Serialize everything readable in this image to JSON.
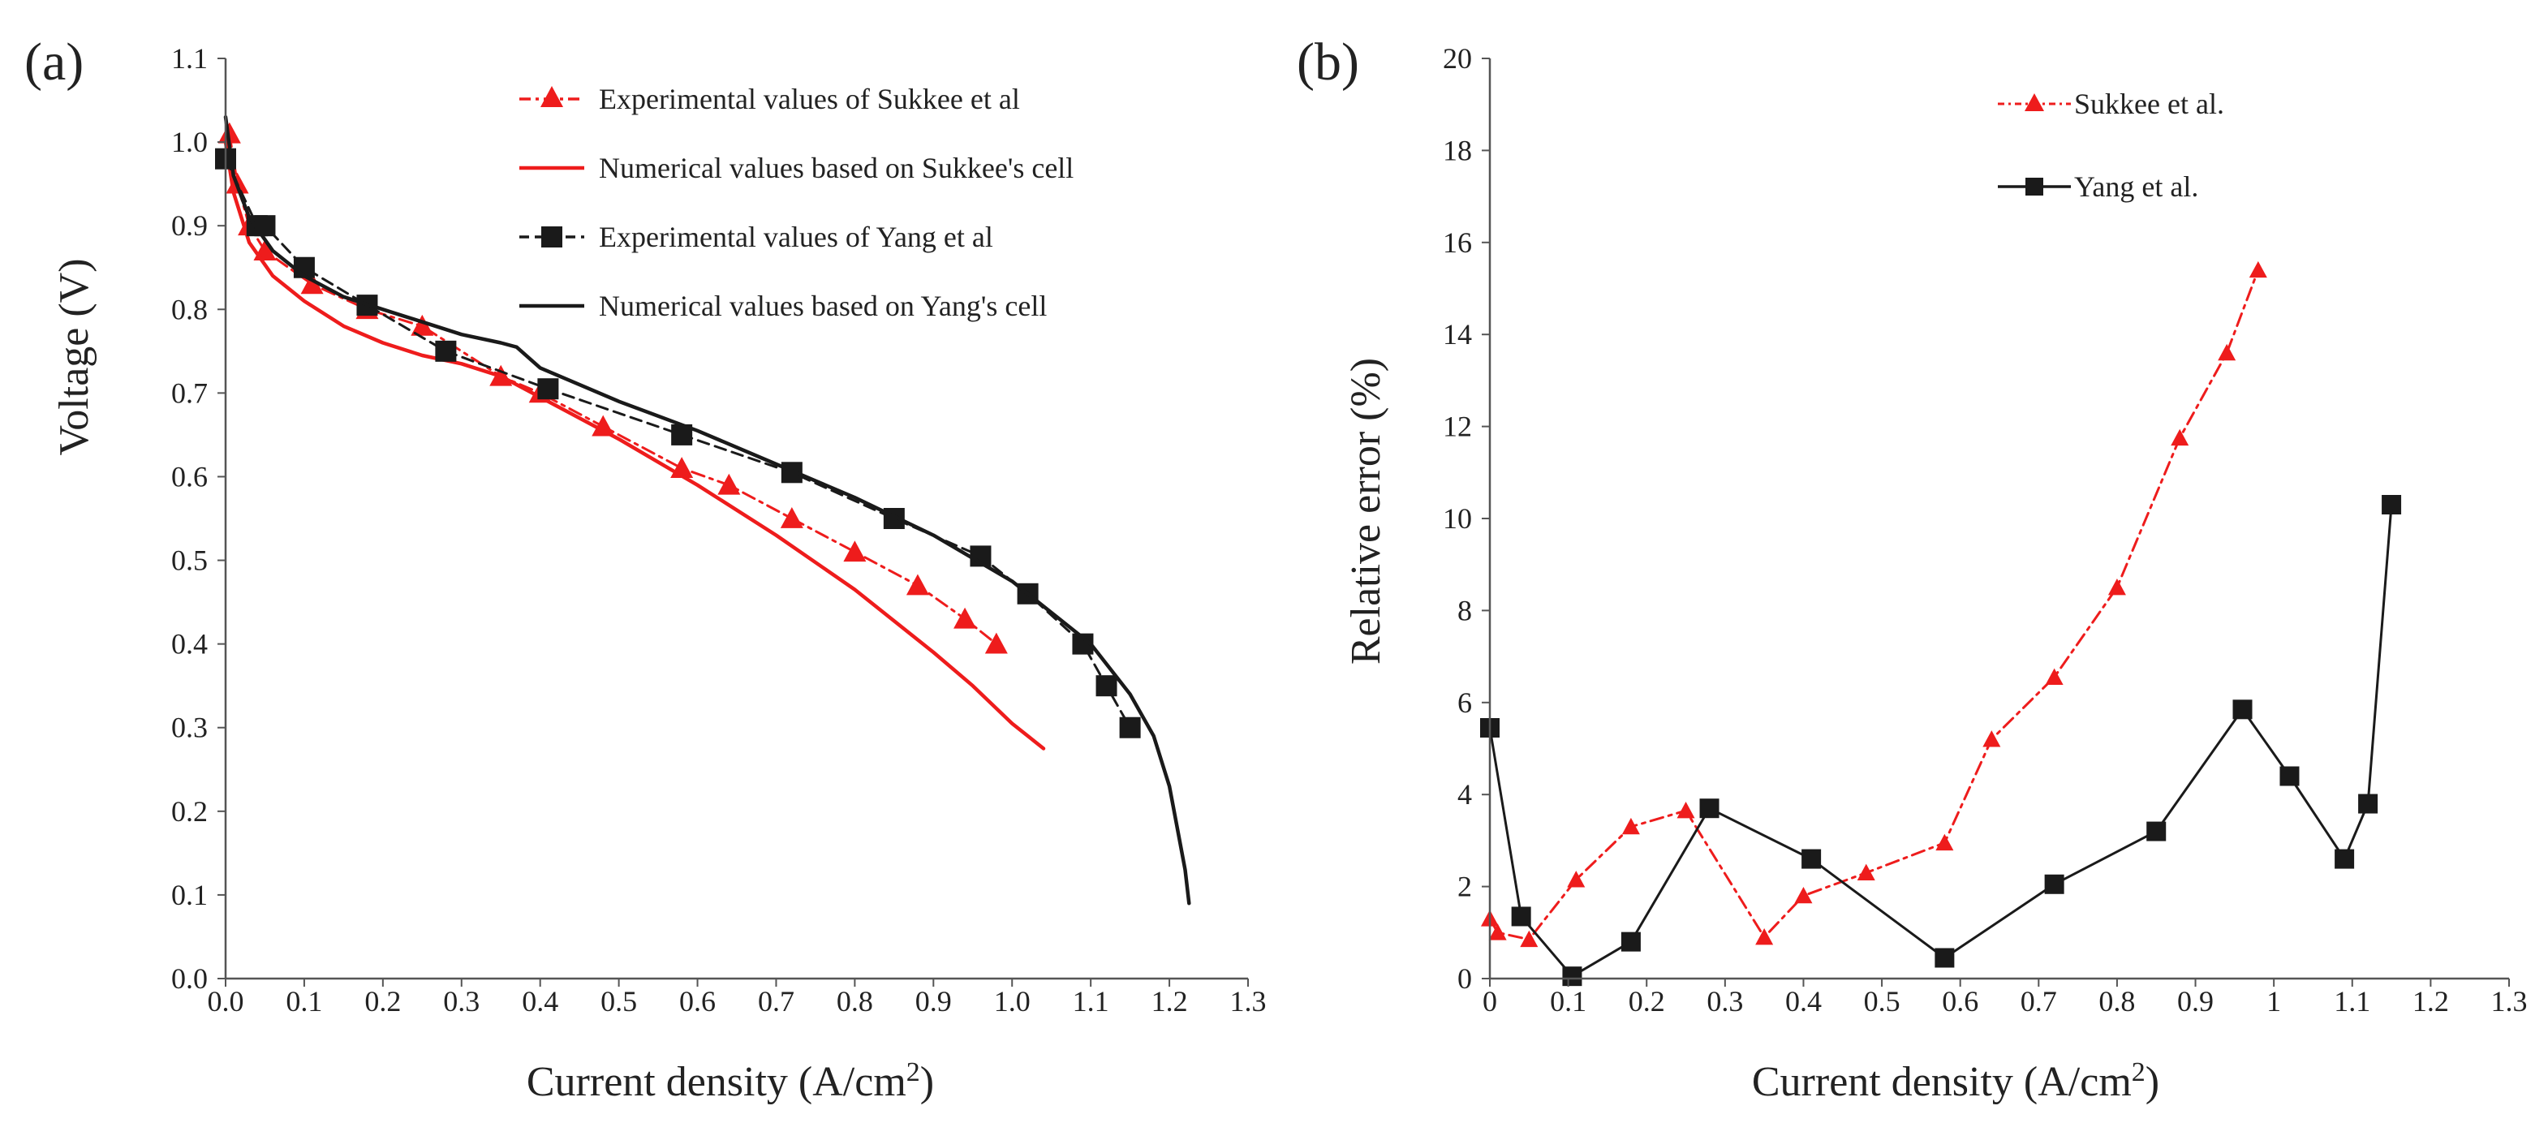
{
  "chart_data": [
    {
      "type": "line",
      "panel_label": "(a)",
      "xlabel": "Current density (A/cm",
      "xlabel_sup": "2",
      "xlabel_end": ")",
      "ylabel": "Voltage (V)",
      "xlim": [
        0,
        1.3
      ],
      "ylim": [
        0,
        1.1
      ],
      "xticks": [
        "0.0",
        "0.1",
        "0.2",
        "0.3",
        "0.4",
        "0.5",
        "0.6",
        "0.7",
        "0.8",
        "0.9",
        "1.0",
        "1.1",
        "1.2",
        "1.3"
      ],
      "yticks": [
        "0.0",
        "0.1",
        "0.2",
        "0.3",
        "0.4",
        "0.5",
        "0.6",
        "0.7",
        "0.8",
        "0.9",
        "1.0",
        "1.1"
      ],
      "series": [
        {
          "name": "Experimental values of Sukkee et al",
          "color": "#ee1c1c",
          "dash": "dashdot",
          "marker": "triangle",
          "x": [
            0.005,
            0.015,
            0.03,
            0.05,
            0.11,
            0.18,
            0.25,
            0.35,
            0.4,
            0.48,
            0.58,
            0.64,
            0.72,
            0.8,
            0.88,
            0.94,
            0.98
          ],
          "y": [
            1.01,
            0.95,
            0.9,
            0.87,
            0.83,
            0.8,
            0.78,
            0.72,
            0.7,
            0.66,
            0.61,
            0.59,
            0.55,
            0.51,
            0.47,
            0.43,
            0.4
          ]
        },
        {
          "name": "Numerical values based on Sukkee's cell",
          "color": "#ee1c1c",
          "dash": "solid",
          "marker": "none",
          "x": [
            0.0,
            0.01,
            0.03,
            0.06,
            0.1,
            0.15,
            0.2,
            0.25,
            0.3,
            0.35,
            0.4,
            0.5,
            0.6,
            0.7,
            0.8,
            0.9,
            0.95,
            1.0,
            1.04
          ],
          "y": [
            1.0,
            0.94,
            0.88,
            0.84,
            0.81,
            0.78,
            0.76,
            0.745,
            0.735,
            0.72,
            0.695,
            0.645,
            0.59,
            0.53,
            0.465,
            0.39,
            0.35,
            0.305,
            0.275
          ]
        },
        {
          "name": "Experimental values of Yang et al",
          "color": "#1a1a1a",
          "dash": "dashed",
          "marker": "square",
          "x": [
            0.0,
            0.04,
            0.05,
            0.1,
            0.18,
            0.28,
            0.41,
            0.58,
            0.72,
            0.85,
            0.96,
            1.02,
            1.09,
            1.12,
            1.15
          ],
          "y": [
            0.98,
            0.9,
            0.9,
            0.85,
            0.805,
            0.75,
            0.705,
            0.65,
            0.605,
            0.55,
            0.505,
            0.46,
            0.4,
            0.35,
            0.3
          ]
        },
        {
          "name": "Numerical values based on Yang's cell",
          "color": "#1a1a1a",
          "dash": "solid",
          "marker": "none",
          "x": [
            0.0,
            0.01,
            0.03,
            0.06,
            0.1,
            0.15,
            0.2,
            0.25,
            0.3,
            0.35,
            0.37,
            0.4,
            0.5,
            0.6,
            0.7,
            0.8,
            0.9,
            1.0,
            1.1,
            1.15,
            1.18,
            1.2,
            1.21,
            1.22,
            1.225
          ],
          "y": [
            1.03,
            0.96,
            0.91,
            0.87,
            0.84,
            0.815,
            0.8,
            0.785,
            0.77,
            0.76,
            0.755,
            0.73,
            0.69,
            0.655,
            0.615,
            0.575,
            0.53,
            0.475,
            0.4,
            0.34,
            0.29,
            0.23,
            0.18,
            0.13,
            0.09
          ]
        }
      ]
    },
    {
      "type": "line",
      "panel_label": "(b)",
      "xlabel": "Current density (A/cm",
      "xlabel_sup": "2",
      "xlabel_end": ")",
      "ylabel": "Relative error (%)",
      "xlim": [
        0,
        1.3
      ],
      "ylim": [
        0,
        20
      ],
      "xticks": [
        "0",
        "0.1",
        "0.2",
        "0.3",
        "0.4",
        "0.5",
        "0.6",
        "0.7",
        "0.8",
        "0.9",
        "1",
        "1.1",
        "1.2",
        "1.3"
      ],
      "yticks": [
        "0",
        "2",
        "4",
        "6",
        "8",
        "10",
        "12",
        "14",
        "16",
        "18",
        "20"
      ],
      "series": [
        {
          "name": "Sukkee et al.",
          "color": "#ee1c1c",
          "dash": "dashdot",
          "marker": "triangle",
          "x": [
            0.0,
            0.01,
            0.05,
            0.11,
            0.18,
            0.25,
            0.35,
            0.4,
            0.48,
            0.58,
            0.64,
            0.72,
            0.8,
            0.88,
            0.94,
            0.98
          ],
          "y": [
            1.3,
            1.0,
            0.85,
            2.15,
            3.3,
            3.65,
            0.9,
            1.8,
            2.3,
            2.95,
            5.2,
            6.55,
            8.5,
            11.75,
            13.6,
            15.4
          ]
        },
        {
          "name": "Yang et al.",
          "color": "#1a1a1a",
          "dash": "solid",
          "marker": "square",
          "x": [
            0.0,
            0.04,
            0.105,
            0.18,
            0.28,
            0.41,
            0.58,
            0.72,
            0.85,
            0.96,
            1.02,
            1.09,
            1.12,
            1.15
          ],
          "y": [
            5.45,
            1.35,
            0.05,
            0.8,
            3.7,
            2.6,
            0.45,
            2.05,
            3.2,
            5.85,
            4.4,
            2.6,
            3.8,
            10.3
          ]
        }
      ]
    }
  ]
}
